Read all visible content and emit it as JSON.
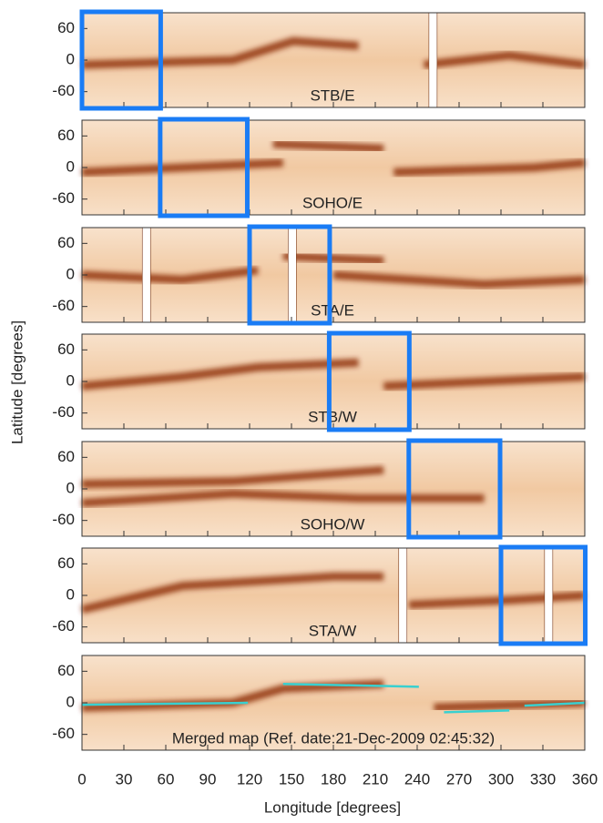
{
  "chart_data": {
    "type": "heatmap",
    "xlabel": "Longitude [degrees]",
    "ylabel": "Latitude [degrees]",
    "xlim": [
      0,
      360
    ],
    "xticks": [
      0,
      30,
      60,
      90,
      120,
      150,
      180,
      210,
      240,
      270,
      300,
      330,
      360
    ],
    "ylim": [
      -90,
      90
    ],
    "yticks": [
      60,
      0,
      -60
    ],
    "box_color": "#1a7cf5",
    "panels": [
      {
        "label": "STB/E",
        "box": [
          0,
          57
        ]
      },
      {
        "label": "SOHO/E",
        "box": [
          56,
          119
        ]
      },
      {
        "label": "STA/E",
        "box": [
          120,
          178
        ]
      },
      {
        "label": "STB/W",
        "box": [
          177,
          235
        ]
      },
      {
        "label": "SOHO/W",
        "box": [
          234,
          300
        ]
      },
      {
        "label": "STA/W",
        "box": [
          300,
          361
        ]
      },
      {
        "label": "Merged map (Ref. date:21-Dec-2009 02:45:32)",
        "box": null
      }
    ]
  }
}
